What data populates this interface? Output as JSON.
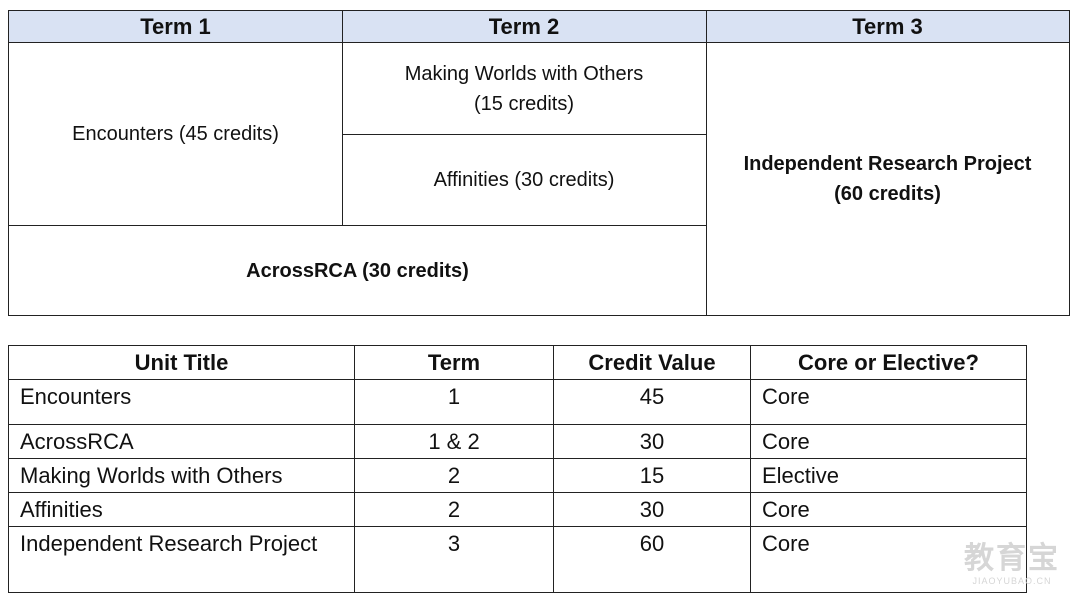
{
  "term_structure": {
    "headers": [
      "Term 1",
      "Term 2",
      "Term 3"
    ],
    "encounters": "Encounters (45 credits)",
    "making_worlds_line1": "Making Worlds with Others",
    "making_worlds_line2": "(15 credits)",
    "affinities": "Affinities (30 credits)",
    "independent_line1": "Independent Research Project",
    "independent_line2": "(60 credits)",
    "acrossrca": "AcrossRCA (30 credits)"
  },
  "unit_table": {
    "columns": [
      "Unit Title",
      "Term",
      "Credit Value",
      "Core or Elective?"
    ],
    "rows": [
      {
        "title": "Encounters",
        "term": "1",
        "credits": "45",
        "type": "Core"
      },
      {
        "title": "AcrossRCA",
        "term": "1 & 2",
        "credits": "30",
        "type": "Core"
      },
      {
        "title": "Making Worlds with Others",
        "term": "2",
        "credits": "15",
        "type": "Elective"
      },
      {
        "title": "Affinities",
        "term": "2",
        "credits": "30",
        "type": "Core"
      },
      {
        "title": "Independent Research Project",
        "term": "3",
        "credits": "60",
        "type": "Core"
      }
    ]
  },
  "watermark": {
    "main": "教育宝",
    "sub": "JIAOYUBAO.CN"
  }
}
